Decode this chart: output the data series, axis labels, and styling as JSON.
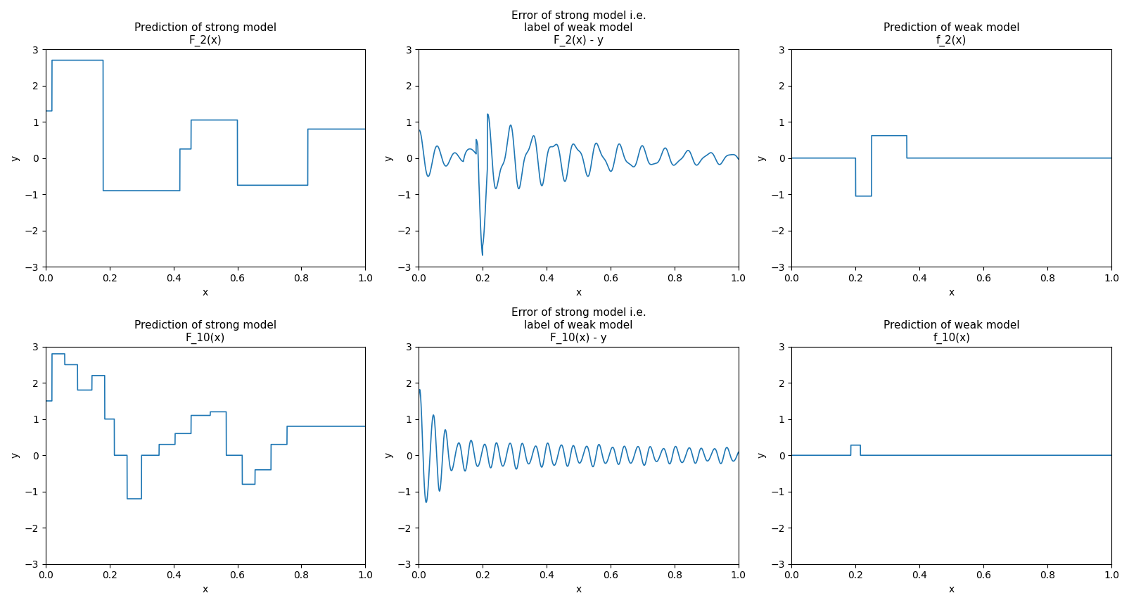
{
  "titles": [
    [
      "Prediction of strong model\nF_2(x)",
      "Error of strong model i.e.\nlabel of weak model\nF_2(x) - y",
      "Prediction of weak model\nf_2(x)"
    ],
    [
      "Prediction of strong model\nF_10(x)",
      "Error of strong model i.e.\nlabel of weak model\nF_10(x) - y",
      "Prediction of weak model\nf_10(x)"
    ]
  ],
  "xlabel": "x",
  "ylabel": "y",
  "ylim": [
    -3,
    3
  ],
  "xlim": [
    0.0,
    1.0
  ],
  "line_color": "#1f77b4",
  "figsize": [
    16.06,
    8.6
  ],
  "dpi": 100,
  "yticks": [
    -3,
    -2,
    -1,
    0,
    1,
    2,
    3
  ]
}
